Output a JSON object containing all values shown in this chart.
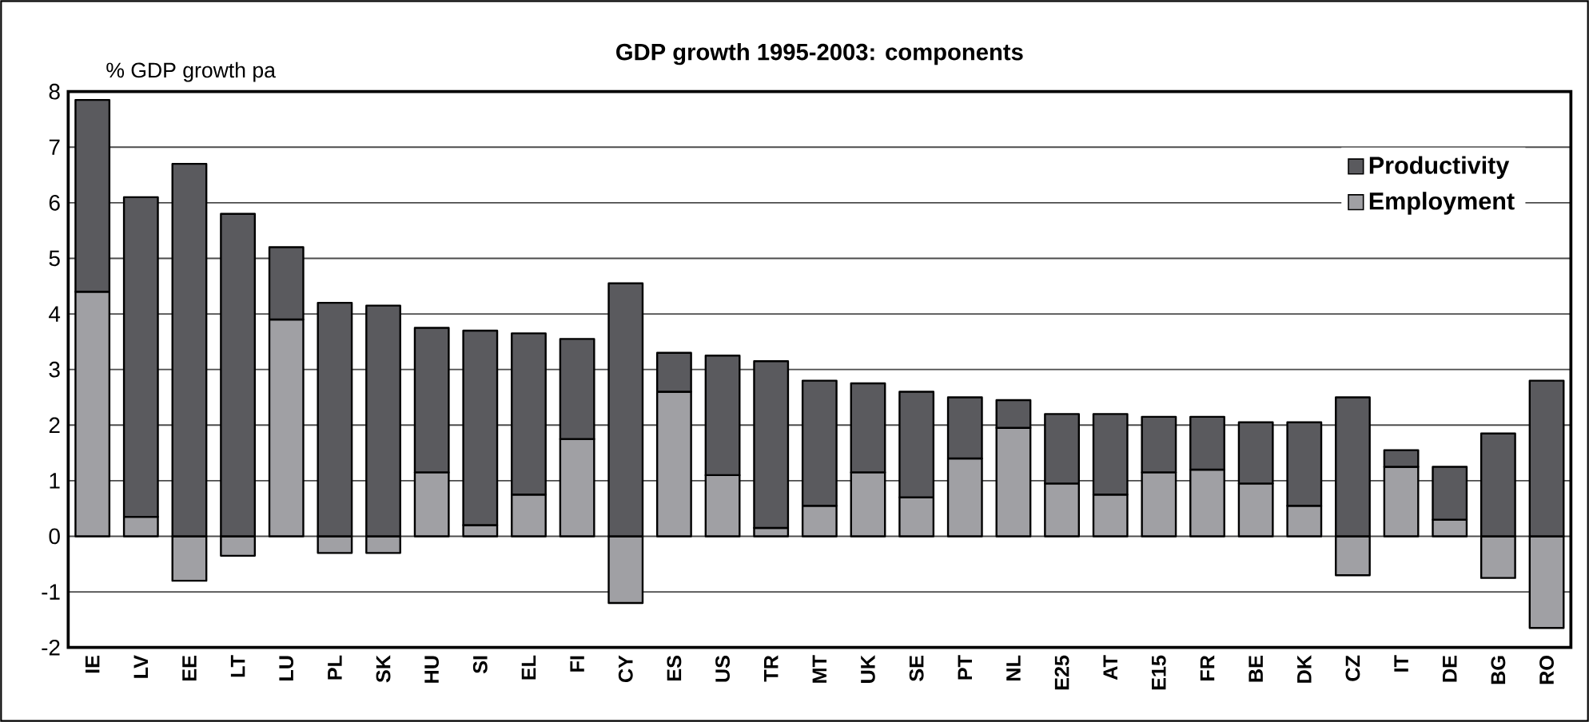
{
  "chart_data": {
    "type": "bar",
    "title": "GDP growth 1995-2003: components",
    "ylabel": "% GDP growth pa",
    "categories": [
      "IE",
      "LV",
      "EE",
      "LT",
      "LU",
      "PL",
      "SK",
      "HU",
      "SI",
      "EL",
      "FI",
      "CY",
      "ES",
      "US",
      "TR",
      "MT",
      "UK",
      "SE",
      "PT",
      "NL",
      "E25",
      "AT",
      "E15",
      "FR",
      "BE",
      "DK",
      "CZ",
      "IT",
      "DE",
      "BG",
      "RO"
    ],
    "stacked": true,
    "series": [
      {
        "name": "Employment",
        "color": "#a0a0a4",
        "values": [
          4.4,
          0.35,
          -0.8,
          -0.35,
          3.9,
          -0.3,
          -0.3,
          1.15,
          0.2,
          0.75,
          1.75,
          -1.2,
          2.6,
          1.1,
          0.15,
          0.55,
          1.15,
          0.7,
          1.4,
          1.95,
          0.95,
          0.75,
          1.15,
          1.2,
          0.95,
          0.55,
          -0.7,
          1.25,
          0.3,
          -0.75,
          -1.65
        ]
      },
      {
        "name": "Productivity",
        "color": "#5a5a5e",
        "values": [
          3.45,
          5.75,
          6.7,
          5.8,
          1.3,
          4.2,
          4.15,
          2.6,
          3.5,
          2.9,
          1.8,
          4.55,
          0.7,
          2.15,
          3.0,
          2.25,
          1.6,
          1.9,
          1.1,
          0.5,
          1.25,
          1.45,
          1.0,
          0.95,
          1.1,
          1.5,
          2.5,
          0.3,
          0.95,
          1.85,
          2.8
        ]
      }
    ],
    "ylim": [
      -2,
      8
    ],
    "yticks": [
      -2,
      -1,
      0,
      1,
      2,
      3,
      4,
      5,
      6,
      7,
      8
    ],
    "grid": "y",
    "legend": "top right"
  }
}
